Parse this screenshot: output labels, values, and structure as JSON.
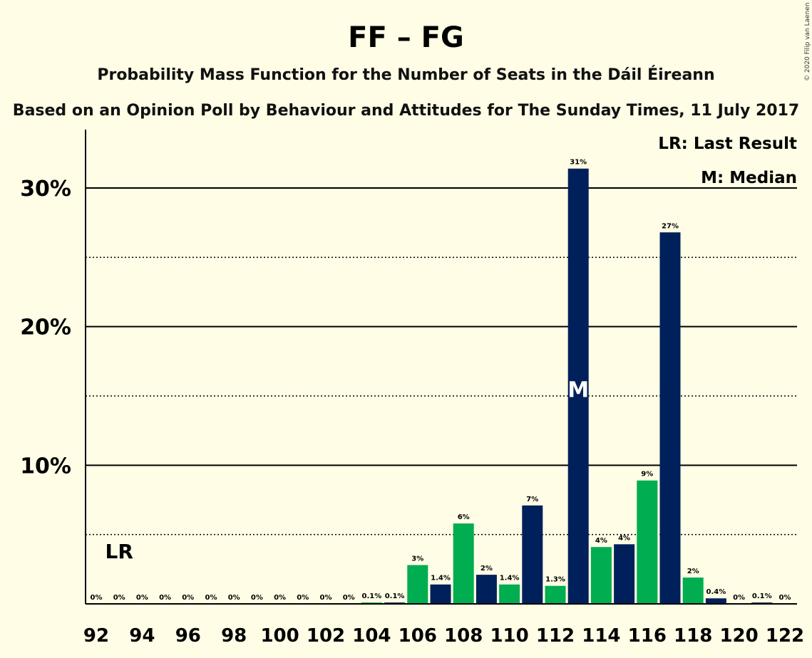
{
  "chart_data": {
    "type": "bar",
    "title": "FF – FG",
    "subtitle": "Probability Mass Function for the Number of Seats in the Dáil Éireann",
    "subtitle2": "Based on an Opinion Poll by Behaviour and Attitudes for The Sunday Times, 11 July 2017",
    "credit": "© 2020 Filip van Laenen",
    "legend": {
      "placement": "top-right",
      "last_result": "LR: Last Result",
      "median": "M: Median"
    },
    "last_result_label": "LR",
    "last_result_seat": 93,
    "median_label": "M",
    "median_seat": 113,
    "x": [
      92,
      93,
      94,
      95,
      96,
      97,
      98,
      99,
      100,
      101,
      102,
      103,
      104,
      105,
      106,
      107,
      108,
      109,
      110,
      111,
      112,
      113,
      114,
      115,
      116,
      117,
      118,
      119,
      120,
      121,
      122
    ],
    "xticks": [
      "92",
      "94",
      "96",
      "98",
      "100",
      "102",
      "104",
      "106",
      "108",
      "110",
      "112",
      "114",
      "116",
      "118",
      "120",
      "122"
    ],
    "values": [
      0,
      0,
      0,
      0,
      0,
      0,
      0,
      0,
      0,
      0,
      0,
      0,
      0.1,
      0.1,
      2.8,
      1.4,
      5.8,
      2.1,
      1.4,
      7.1,
      1.3,
      31.4,
      4.1,
      4.3,
      8.9,
      26.8,
      1.9,
      0.4,
      0,
      0.1,
      0
    ],
    "labels": [
      "0%",
      "0%",
      "0%",
      "0%",
      "0%",
      "0%",
      "0%",
      "0%",
      "0%",
      "0%",
      "0%",
      "0%",
      "0.1%",
      "0.1%",
      "3%",
      "1.4%",
      "6%",
      "2%",
      "1.4%",
      "7%",
      "1.3%",
      "31%",
      "4%",
      "4%",
      "9%",
      "27%",
      "2%",
      "0.4%",
      "0%",
      "0.1%",
      "0%"
    ],
    "yticks": [
      {
        "value": 10,
        "label": "10%"
      },
      {
        "value": 20,
        "label": "20%"
      },
      {
        "value": 30,
        "label": "30%"
      }
    ],
    "ylim": [
      0,
      34
    ],
    "grid": {
      "solid_every": 10,
      "dotted_at": [
        5,
        15,
        25
      ]
    },
    "colors": {
      "background": "#FFFDE5",
      "navy": "#00205B",
      "green": "#00AD50",
      "axis": "#000000"
    }
  }
}
